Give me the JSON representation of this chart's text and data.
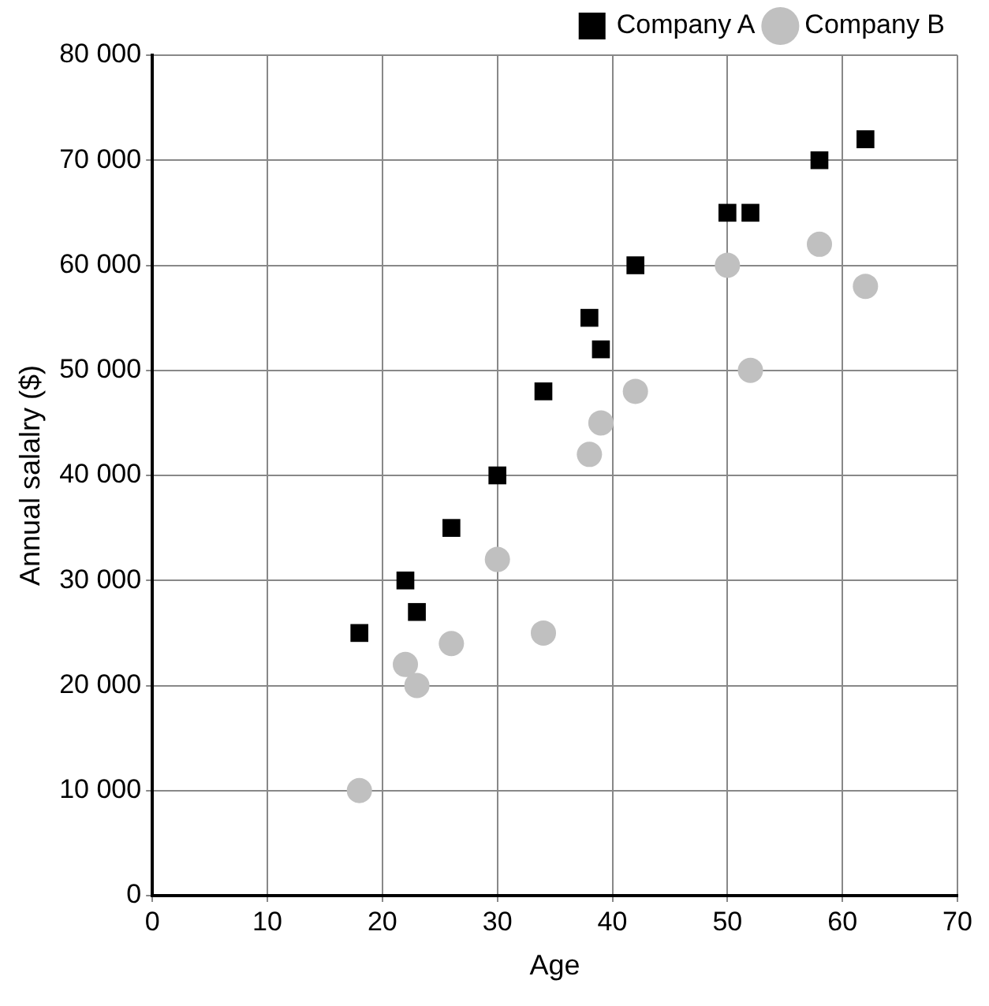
{
  "chart_data": {
    "type": "scatter",
    "xlabel": "Age",
    "ylabel": "Annual salalry ($)",
    "xlim": [
      0,
      70
    ],
    "xticks": [
      0,
      10,
      20,
      30,
      40,
      50,
      60,
      70
    ],
    "ylim": [
      0,
      80000
    ],
    "yticks": [
      0,
      {
        "value": 10000,
        "label": "10 000"
      },
      {
        "value": 20000,
        "label": "20 000"
      },
      {
        "value": 30000,
        "label": "30 000"
      },
      {
        "value": 40000,
        "label": "40 000"
      },
      {
        "value": 50000,
        "label": "50 000"
      },
      {
        "value": 60000,
        "label": "60 000"
      },
      {
        "value": 70000,
        "label": "70 000"
      },
      {
        "value": 80000,
        "label": "80 000"
      }
    ],
    "grid": true,
    "legend": "top right",
    "series": [
      {
        "name": "Company A",
        "color": "#000000",
        "marker": "square",
        "x": [
          18,
          22,
          23,
          26,
          30,
          34,
          38,
          39,
          42,
          50,
          52,
          58,
          62
        ],
        "values": [
          25000,
          30000,
          27000,
          35000,
          40000,
          48000,
          55000,
          52000,
          60000,
          65000,
          65000,
          70000,
          72000
        ]
      },
      {
        "name": "Company B",
        "color": "#c0c0c0",
        "marker": "circle",
        "x": [
          18,
          22,
          23,
          26,
          30,
          34,
          38,
          39,
          42,
          50,
          52,
          58,
          62
        ],
        "values": [
          10000,
          22000,
          20000,
          24000,
          32000,
          25000,
          42000,
          45000,
          48000,
          60000,
          50000,
          62000,
          58000
        ]
      }
    ]
  }
}
